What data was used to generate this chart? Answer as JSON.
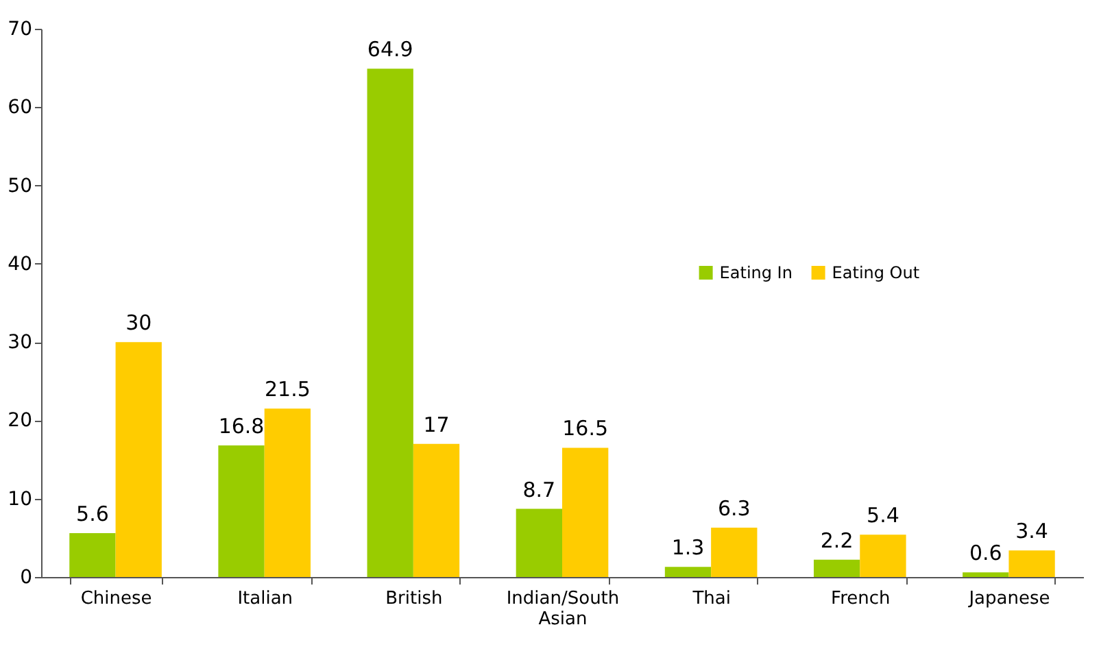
{
  "chart_data": {
    "type": "bar",
    "categories": [
      "Chinese",
      "Italian",
      "British",
      "Indian/South Asian",
      "Thai",
      "French",
      "Japanese"
    ],
    "series": [
      {
        "name": "Eating In",
        "color": "#99cc00",
        "values": [
          5.6,
          16.8,
          64.9,
          8.7,
          1.3,
          2.2,
          0.6
        ]
      },
      {
        "name": "Eating Out",
        "color": "#ffcc00",
        "values": [
          30,
          21.5,
          17,
          16.5,
          6.3,
          5.4,
          3.4
        ]
      }
    ],
    "ylim": [
      0,
      70
    ],
    "yticks": [
      0,
      10,
      20,
      30,
      40,
      50,
      60,
      70
    ],
    "grid": false,
    "legend": "right",
    "data_labels": true
  }
}
